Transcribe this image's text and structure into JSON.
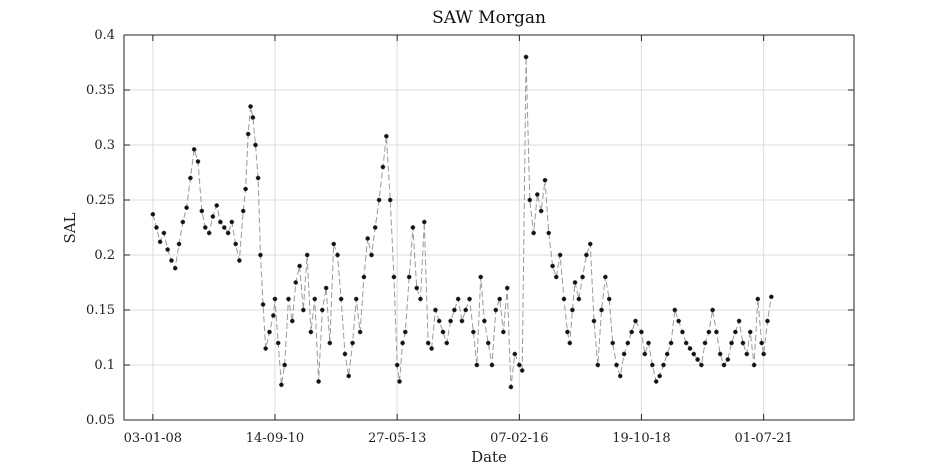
{
  "chart_data": {
    "type": "line",
    "title": "SAW Morgan",
    "xlabel": "Date",
    "ylabel": "SAL",
    "xlim": [
      "2007-05-15",
      "2023-06-30"
    ],
    "ylim": [
      0.05,
      0.4
    ],
    "x_ticks": [
      {
        "date": "2008-01-03",
        "label": "03-01-08"
      },
      {
        "date": "2010-09-14",
        "label": "14-09-10"
      },
      {
        "date": "2013-05-27",
        "label": "27-05-13"
      },
      {
        "date": "2016-02-07",
        "label": "07-02-16"
      },
      {
        "date": "2018-10-19",
        "label": "19-10-18"
      },
      {
        "date": "2021-07-01",
        "label": "01-07-21"
      }
    ],
    "y_ticks": [
      0.05,
      0.1,
      0.15,
      0.2,
      0.25,
      0.3,
      0.35,
      0.4
    ],
    "y_tick_labels": [
      "0.05",
      "0.1",
      "0.15",
      "0.2",
      "0.25",
      "0.3",
      "0.35",
      "0.4"
    ],
    "grid": true,
    "series": [
      {
        "style": "dashed line with dot markers",
        "x": [
          "2008-01-03",
          "2008-02-01",
          "2008-03-01",
          "2008-04-01",
          "2008-05-01",
          "2008-06-01",
          "2008-07-01",
          "2008-08-01",
          "2008-09-01",
          "2008-10-01",
          "2008-11-01",
          "2008-12-01",
          "2009-01-01",
          "2009-02-01",
          "2009-03-01",
          "2009-04-01",
          "2009-05-01",
          "2009-06-01",
          "2009-07-01",
          "2009-08-01",
          "2009-09-01",
          "2009-10-01",
          "2009-11-01",
          "2009-12-01",
          "2010-01-01",
          "2010-01-20",
          "2010-02-10",
          "2010-03-01",
          "2010-03-20",
          "2010-04-10",
          "2010-05-01",
          "2010-05-20",
          "2010-06-10",
          "2010-07-01",
          "2010-08-01",
          "2010-09-01",
          "2010-09-14",
          "2010-10-10",
          "2010-11-05",
          "2010-12-01",
          "2011-01-01",
          "2011-02-01",
          "2011-03-01",
          "2011-04-01",
          "2011-05-01",
          "2011-06-01",
          "2011-07-01",
          "2011-08-01",
          "2011-09-01",
          "2011-10-01",
          "2011-11-01",
          "2011-12-01",
          "2012-01-01",
          "2012-02-01",
          "2012-03-01",
          "2012-04-01",
          "2012-05-01",
          "2012-06-01",
          "2012-07-01",
          "2012-08-01",
          "2012-09-01",
          "2012-10-01",
          "2012-11-01",
          "2012-12-01",
          "2013-01-01",
          "2013-02-01",
          "2013-03-01",
          "2013-04-01",
          "2013-05-01",
          "2013-05-27",
          "2013-06-15",
          "2013-07-10",
          "2013-08-01",
          "2013-09-01",
          "2013-10-01",
          "2013-11-01",
          "2013-12-01",
          "2014-01-01",
          "2014-02-01",
          "2014-03-01",
          "2014-04-01",
          "2014-05-01",
          "2014-06-01",
          "2014-07-01",
          "2014-08-01",
          "2014-09-01",
          "2014-10-01",
          "2014-11-01",
          "2014-12-01",
          "2015-01-01",
          "2015-02-01",
          "2015-03-01",
          "2015-04-01",
          "2015-05-01",
          "2015-06-01",
          "2015-07-01",
          "2015-08-01",
          "2015-09-01",
          "2015-10-01",
          "2015-11-01",
          "2015-12-01",
          "2016-01-01",
          "2016-02-07",
          "2016-03-01",
          "2016-04-01",
          "2016-05-01",
          "2016-06-01",
          "2016-07-01",
          "2016-08-01",
          "2016-09-01",
          "2016-10-01",
          "2016-11-01",
          "2016-12-01",
          "2017-01-01",
          "2017-02-01",
          "2017-03-01",
          "2017-03-20",
          "2017-04-10",
          "2017-05-01",
          "2017-06-01",
          "2017-07-01",
          "2017-08-01",
          "2017-09-01",
          "2017-10-01",
          "2017-11-01",
          "2017-12-01",
          "2018-01-01",
          "2018-02-01",
          "2018-03-01",
          "2018-04-01",
          "2018-05-01",
          "2018-06-01",
          "2018-07-01",
          "2018-08-01",
          "2018-09-01",
          "2018-10-19",
          "2018-11-15",
          "2018-12-15",
          "2019-01-15",
          "2019-02-15",
          "2019-03-15",
          "2019-04-15",
          "2019-05-15",
          "2019-06-15",
          "2019-07-15",
          "2019-08-15",
          "2019-09-15",
          "2019-10-15",
          "2019-11-15",
          "2019-12-15",
          "2020-01-15",
          "2020-02-15",
          "2020-03-15",
          "2020-04-15",
          "2020-05-15",
          "2020-06-15",
          "2020-07-15",
          "2020-08-15",
          "2020-09-15",
          "2020-10-15",
          "2020-11-15",
          "2020-12-15",
          "2021-01-15",
          "2021-02-15",
          "2021-03-15",
          "2021-04-15",
          "2021-05-15",
          "2021-06-15",
          "2021-07-01",
          "2021-08-01",
          "2021-09-01"
        ],
        "y": [
          0.237,
          0.225,
          0.212,
          0.22,
          0.205,
          0.195,
          0.188,
          0.21,
          0.23,
          0.243,
          0.27,
          0.296,
          0.285,
          0.24,
          0.225,
          0.22,
          0.235,
          0.245,
          0.23,
          0.225,
          0.22,
          0.23,
          0.21,
          0.195,
          0.24,
          0.26,
          0.31,
          0.335,
          0.325,
          0.3,
          0.27,
          0.2,
          0.155,
          0.115,
          0.13,
          0.145,
          0.16,
          0.12,
          0.082,
          0.1,
          0.16,
          0.14,
          0.175,
          0.19,
          0.15,
          0.2,
          0.13,
          0.16,
          0.085,
          0.15,
          0.17,
          0.12,
          0.21,
          0.2,
          0.16,
          0.11,
          0.09,
          0.12,
          0.16,
          0.13,
          0.18,
          0.215,
          0.2,
          0.225,
          0.25,
          0.28,
          0.308,
          0.25,
          0.18,
          0.1,
          0.085,
          0.12,
          0.13,
          0.18,
          0.225,
          0.17,
          0.16,
          0.23,
          0.12,
          0.115,
          0.15,
          0.14,
          0.13,
          0.12,
          0.14,
          0.15,
          0.16,
          0.14,
          0.15,
          0.16,
          0.13,
          0.1,
          0.18,
          0.14,
          0.12,
          0.1,
          0.15,
          0.16,
          0.13,
          0.17,
          0.08,
          0.11,
          0.1,
          0.095,
          0.38,
          0.25,
          0.22,
          0.255,
          0.24,
          0.268,
          0.22,
          0.19,
          0.18,
          0.2,
          0.16,
          0.13,
          0.12,
          0.15,
          0.175,
          0.16,
          0.18,
          0.2,
          0.21,
          0.14,
          0.1,
          0.15,
          0.18,
          0.16,
          0.12,
          0.1,
          0.09,
          0.11,
          0.12,
          0.13,
          0.14,
          0.13,
          0.11,
          0.12,
          0.1,
          0.085,
          0.09,
          0.1,
          0.11,
          0.12,
          0.15,
          0.14,
          0.13,
          0.12,
          0.115,
          0.11,
          0.105,
          0.1,
          0.12,
          0.13,
          0.15,
          0.13,
          0.11,
          0.1,
          0.105,
          0.12,
          0.13,
          0.14,
          0.12,
          0.11,
          0.13,
          0.1,
          0.16,
          0.12,
          0.11,
          0.14,
          0.162
        ]
      }
    ]
  }
}
